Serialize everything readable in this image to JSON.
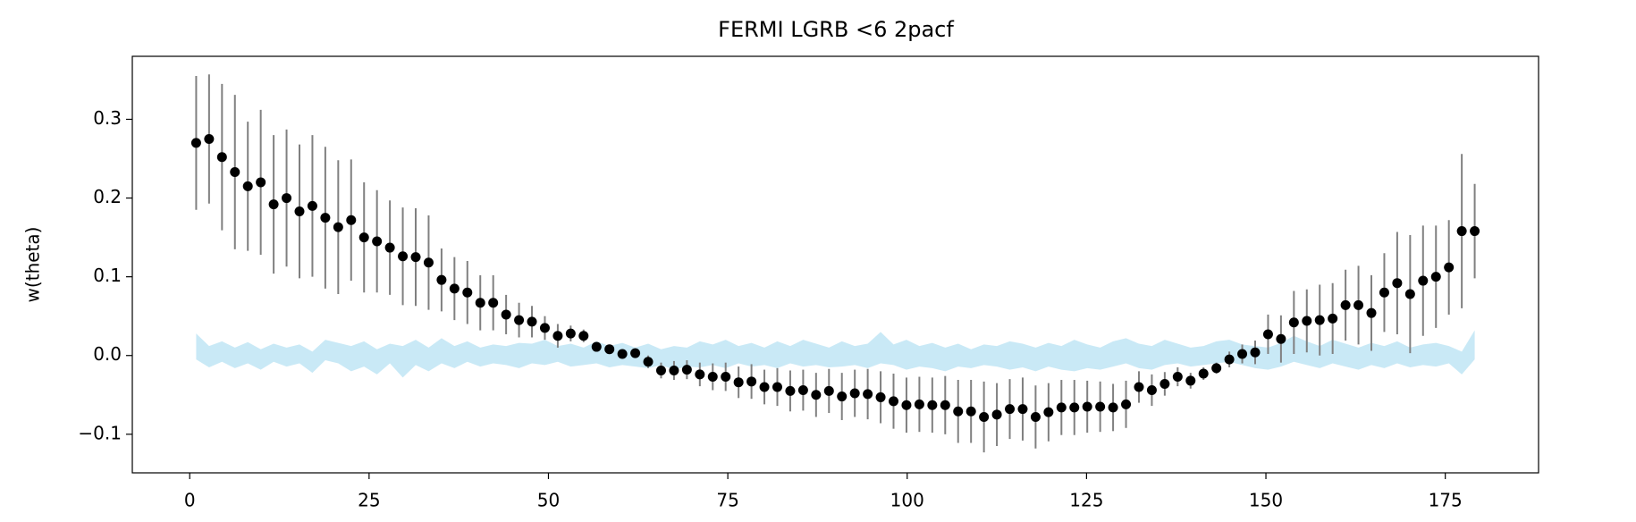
{
  "chart_data": {
    "type": "errorbar",
    "title": "FERMI LGRB <6 2pacf",
    "ylabel": "w(theta)",
    "x": [
      0.9,
      2.7,
      4.5,
      6.3,
      8.1,
      9.9,
      11.7,
      13.5,
      15.3,
      17.1,
      18.9,
      20.7,
      22.5,
      24.3,
      26.1,
      27.9,
      29.7,
      31.5,
      33.3,
      35.1,
      36.9,
      38.7,
      40.5,
      42.3,
      44.1,
      45.9,
      47.7,
      49.5,
      51.3,
      53.1,
      54.9,
      56.7,
      58.5,
      60.3,
      62.1,
      63.9,
      65.7,
      67.5,
      69.3,
      71.1,
      72.9,
      74.7,
      76.5,
      78.3,
      80.1,
      81.9,
      83.7,
      85.5,
      87.3,
      89.1,
      90.9,
      92.7,
      94.5,
      96.3,
      98.1,
      99.9,
      101.7,
      103.5,
      105.3,
      107.1,
      108.9,
      110.7,
      112.5,
      114.3,
      116.1,
      117.9,
      119.7,
      121.5,
      123.3,
      125.1,
      126.9,
      128.7,
      130.5,
      132.3,
      134.1,
      135.9,
      137.7,
      139.5,
      141.3,
      143.1,
      144.9,
      146.7,
      148.5,
      150.3,
      152.1,
      153.9,
      155.7,
      157.5,
      159.3,
      161.1,
      162.9,
      164.7,
      166.5,
      168.3,
      170.1,
      171.9,
      173.7,
      175.5,
      177.3,
      179.1
    ],
    "series": [
      {
        "color": "#000000",
        "error_color": "#808080",
        "values": [
          0.27,
          0.275,
          0.252,
          0.233,
          0.215,
          0.22,
          0.192,
          0.2,
          0.183,
          0.19,
          0.175,
          0.163,
          0.172,
          0.15,
          0.145,
          0.137,
          0.126,
          0.125,
          0.118,
          0.096,
          0.085,
          0.08,
          0.067,
          0.067,
          0.052,
          0.045,
          0.043,
          0.035,
          0.025,
          0.028,
          0.025,
          0.011,
          0.008,
          0.002,
          0.003,
          -0.008,
          -0.019,
          -0.019,
          -0.018,
          -0.024,
          -0.027,
          -0.027,
          -0.034,
          -0.033,
          -0.04,
          -0.04,
          -0.045,
          -0.044,
          -0.05,
          -0.045,
          -0.052,
          -0.048,
          -0.049,
          -0.053,
          -0.058,
          -0.063,
          -0.062,
          -0.063,
          -0.063,
          -0.071,
          -0.071,
          -0.078,
          -0.075,
          -0.068,
          -0.068,
          -0.078,
          -0.072,
          -0.066,
          -0.066,
          -0.065,
          -0.065,
          -0.066,
          -0.062,
          -0.04,
          -0.044,
          -0.036,
          -0.027,
          -0.032,
          -0.023,
          -0.016,
          -0.005,
          0.002,
          0.004,
          0.027,
          0.021,
          0.042,
          0.044,
          0.045,
          0.047,
          0.064,
          0.064,
          0.054,
          0.08,
          0.092,
          0.078,
          0.095,
          0.1,
          0.112,
          0.158,
          0.158
        ],
        "errors": [
          0.085,
          0.082,
          0.093,
          0.098,
          0.082,
          0.092,
          0.088,
          0.087,
          0.085,
          0.09,
          0.09,
          0.085,
          0.077,
          0.07,
          0.065,
          0.06,
          0.062,
          0.062,
          0.06,
          0.04,
          0.04,
          0.04,
          0.035,
          0.035,
          0.025,
          0.022,
          0.02,
          0.015,
          0.015,
          0.01,
          0.008,
          0.005,
          0.005,
          0.005,
          0.006,
          0.008,
          0.01,
          0.012,
          0.012,
          0.015,
          0.017,
          0.018,
          0.02,
          0.022,
          0.022,
          0.024,
          0.026,
          0.026,
          0.028,
          0.028,
          0.03,
          0.03,
          0.032,
          0.033,
          0.035,
          0.035,
          0.035,
          0.035,
          0.037,
          0.04,
          0.04,
          0.045,
          0.04,
          0.038,
          0.04,
          0.04,
          0.037,
          0.035,
          0.035,
          0.033,
          0.032,
          0.03,
          0.03,
          0.02,
          0.02,
          0.015,
          0.012,
          0.01,
          0.008,
          0.007,
          0.01,
          0.012,
          0.015,
          0.025,
          0.03,
          0.04,
          0.04,
          0.045,
          0.045,
          0.045,
          0.05,
          0.048,
          0.05,
          0.065,
          0.075,
          0.07,
          0.065,
          0.06,
          0.098,
          0.06
        ]
      }
    ],
    "band": {
      "color": "#87ceeb",
      "upper": [
        0.028,
        0.012,
        0.018,
        0.01,
        0.017,
        0.008,
        0.015,
        0.01,
        0.014,
        0.005,
        0.02,
        0.016,
        0.012,
        0.018,
        0.008,
        0.015,
        0.012,
        0.02,
        0.01,
        0.022,
        0.012,
        0.018,
        0.01,
        0.014,
        0.012,
        0.016,
        0.015,
        0.02,
        0.012,
        0.015,
        0.01,
        0.018,
        0.012,
        0.016,
        0.01,
        0.015,
        0.008,
        0.012,
        0.01,
        0.018,
        0.014,
        0.02,
        0.012,
        0.016,
        0.01,
        0.018,
        0.012,
        0.02,
        0.015,
        0.01,
        0.018,
        0.012,
        0.015,
        0.03,
        0.014,
        0.02,
        0.012,
        0.016,
        0.01,
        0.015,
        0.008,
        0.014,
        0.012,
        0.018,
        0.015,
        0.01,
        0.016,
        0.012,
        0.02,
        0.014,
        0.01,
        0.018,
        0.022,
        0.015,
        0.012,
        0.02,
        0.015,
        0.01,
        0.012,
        0.018,
        0.02,
        0.014,
        0.012,
        0.01,
        0.016,
        0.025,
        0.018,
        0.012,
        0.02,
        0.015,
        0.01,
        0.016,
        0.012,
        0.018,
        0.01,
        0.014,
        0.016,
        0.012,
        0.005,
        0.032
      ],
      "lower": [
        -0.005,
        -0.015,
        -0.008,
        -0.016,
        -0.01,
        -0.018,
        -0.008,
        -0.014,
        -0.01,
        -0.022,
        -0.006,
        -0.01,
        -0.02,
        -0.014,
        -0.024,
        -0.01,
        -0.028,
        -0.012,
        -0.02,
        -0.01,
        -0.016,
        -0.008,
        -0.014,
        -0.01,
        -0.012,
        -0.016,
        -0.01,
        -0.012,
        -0.008,
        -0.014,
        -0.012,
        -0.01,
        -0.015,
        -0.012,
        -0.014,
        -0.016,
        -0.012,
        -0.018,
        -0.014,
        -0.015,
        -0.012,
        -0.016,
        -0.01,
        -0.014,
        -0.012,
        -0.016,
        -0.01,
        -0.014,
        -0.012,
        -0.015,
        -0.014,
        -0.012,
        -0.016,
        -0.01,
        -0.012,
        -0.018,
        -0.014,
        -0.016,
        -0.02,
        -0.014,
        -0.016,
        -0.012,
        -0.014,
        -0.018,
        -0.015,
        -0.02,
        -0.014,
        -0.018,
        -0.02,
        -0.016,
        -0.018,
        -0.014,
        -0.01,
        -0.016,
        -0.018,
        -0.012,
        -0.01,
        -0.014,
        -0.012,
        -0.01,
        -0.008,
        -0.012,
        -0.016,
        -0.018,
        -0.014,
        -0.008,
        -0.012,
        -0.016,
        -0.01,
        -0.014,
        -0.018,
        -0.012,
        -0.016,
        -0.01,
        -0.015,
        -0.012,
        -0.014,
        -0.01,
        -0.024,
        -0.005
      ]
    },
    "xlim": [
      -8,
      188
    ],
    "xticks": [
      0,
      25,
      50,
      75,
      100,
      125,
      150,
      175
    ],
    "ylim": [
      -0.149,
      0.38
    ],
    "yticks": [
      -0.1,
      0.0,
      0.1,
      0.2,
      0.3
    ]
  }
}
